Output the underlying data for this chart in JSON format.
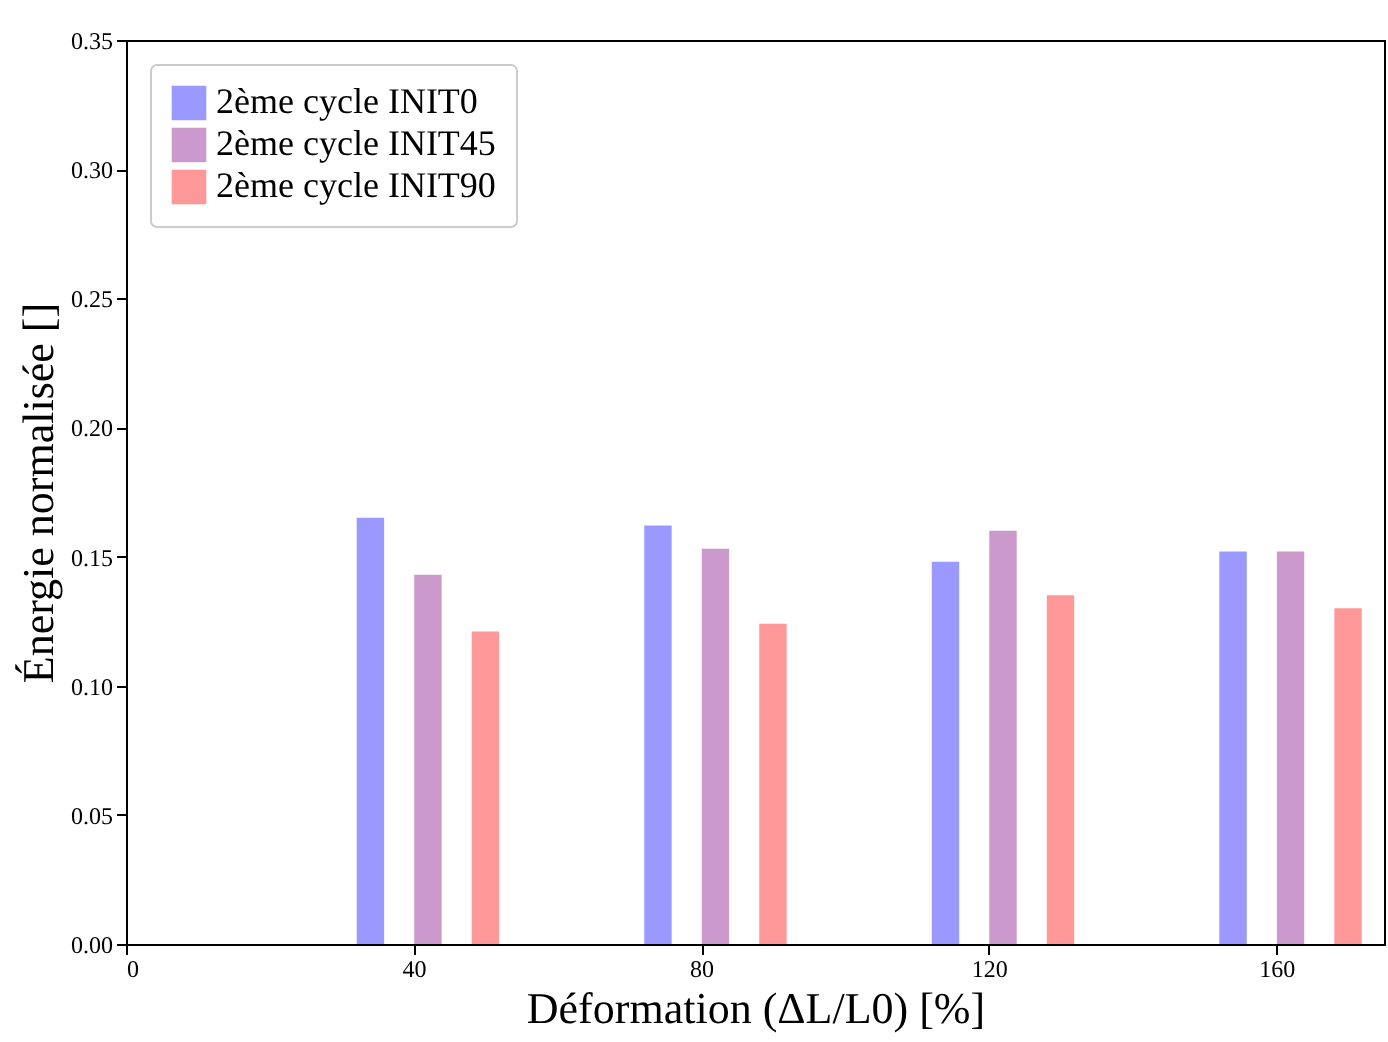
{
  "chart_data": {
    "type": "bar",
    "xlabel": "Déformation (ΔL/L0) [%]",
    "ylabel": "Énergie normalisée []",
    "xlim": [
      0,
      175
    ],
    "xticks": [
      0,
      40,
      80,
      120,
      160
    ],
    "ylim": [
      0,
      0.35
    ],
    "yticks": [
      {
        "value": 0,
        "label": "0.00"
      },
      0.05,
      {
        "value": 0.1,
        "label": "0.10"
      },
      0.15,
      {
        "value": 0.2,
        "label": "0.20"
      },
      0.25,
      {
        "value": 0.3,
        "label": "0.30"
      },
      0.35
    ],
    "grid": false,
    "legend": "top left",
    "series": [
      {
        "name": "2ème cycle INIT0",
        "color": "#9999ff",
        "x": [
          34,
          74,
          114,
          154
        ],
        "values": [
          0.165,
          0.162,
          0.148,
          0.152
        ]
      },
      {
        "name": "2ème cycle INIT45",
        "color": "#cc99cc",
        "x": [
          42,
          82,
          122,
          162
        ],
        "values": [
          0.143,
          0.153,
          0.16,
          0.152
        ]
      },
      {
        "name": "2ème cycle INIT90",
        "color": "#ff9999",
        "x": [
          50,
          90,
          130,
          170
        ],
        "values": [
          0.121,
          0.124,
          0.135,
          0.13
        ]
      }
    ]
  }
}
